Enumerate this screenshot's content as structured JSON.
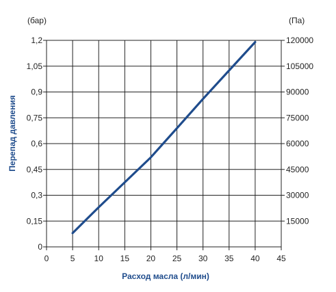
{
  "chart_data": {
    "type": "line",
    "xlabel": "Расход масла (л/мин)",
    "ylabel": "Перепад давления",
    "y_unit_left": "(бар)",
    "y_unit_right": "(Па)",
    "xlim": [
      0,
      45
    ],
    "ylim": [
      0,
      1.2
    ],
    "x_ticks": [
      "0",
      "5",
      "10",
      "15",
      "20",
      "25",
      "30",
      "35",
      "40",
      "45"
    ],
    "y_ticks_left": [
      "0",
      "0,15",
      "0,3",
      "0,45",
      "0,6",
      "0,75",
      "0,9",
      "1,05",
      "1,2"
    ],
    "y_ticks_right": [
      "15000",
      "30000",
      "45000",
      "60000",
      "75000",
      "90000",
      "105000",
      "120000"
    ],
    "grid": true,
    "series": [
      {
        "x": [
          5,
          10,
          15,
          20,
          25,
          30,
          35,
          40
        ],
        "y": [
          0.08,
          0.23,
          0.375,
          0.52,
          0.69,
          0.86,
          1.025,
          1.19
        ]
      }
    ],
    "colors": {
      "series": "#1f4c8c",
      "axis_title": "#1f4c8c",
      "grid": "#222222"
    }
  }
}
